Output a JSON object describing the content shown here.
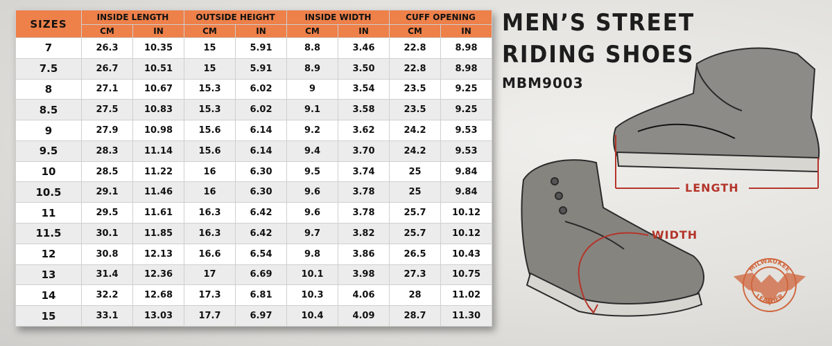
{
  "title_line1": "MEN’S STREET",
  "title_line2": "RIDING SHOES",
  "model": "MBM9003",
  "labels": {
    "length": "LENGTH",
    "width": "WIDTH"
  },
  "logo": {
    "top": "MILWAUKEE",
    "bottom": "LEATHER"
  },
  "colors": {
    "header": "#ee8049",
    "accent": "#b4342a",
    "row_alt": "#ececec"
  },
  "table": {
    "sizes_header": "SIZES",
    "groups": [
      "INSIDE LENGTH",
      "OUTSIDE HEIGHT",
      "INSIDE WIDTH",
      "CUFF OPENING"
    ],
    "units": [
      "CM",
      "IN",
      "CM",
      "IN",
      "CM",
      "IN",
      "CM",
      "IN"
    ],
    "rows": [
      [
        "7",
        "26.3",
        "10.35",
        "15",
        "5.91",
        "8.8",
        "3.46",
        "22.8",
        "8.98"
      ],
      [
        "7.5",
        "26.7",
        "10.51",
        "15",
        "5.91",
        "8.9",
        "3.50",
        "22.8",
        "8.98"
      ],
      [
        "8",
        "27.1",
        "10.67",
        "15.3",
        "6.02",
        "9",
        "3.54",
        "23.5",
        "9.25"
      ],
      [
        "8.5",
        "27.5",
        "10.83",
        "15.3",
        "6.02",
        "9.1",
        "3.58",
        "23.5",
        "9.25"
      ],
      [
        "9",
        "27.9",
        "10.98",
        "15.6",
        "6.14",
        "9.2",
        "3.62",
        "24.2",
        "9.53"
      ],
      [
        "9.5",
        "28.3",
        "11.14",
        "15.6",
        "6.14",
        "9.4",
        "3.70",
        "24.2",
        "9.53"
      ],
      [
        "10",
        "28.5",
        "11.22",
        "16",
        "6.30",
        "9.5",
        "3.74",
        "25",
        "9.84"
      ],
      [
        "10.5",
        "29.1",
        "11.46",
        "16",
        "6.30",
        "9.6",
        "3.78",
        "25",
        "9.84"
      ],
      [
        "11",
        "29.5",
        "11.61",
        "16.3",
        "6.42",
        "9.6",
        "3.78",
        "25.7",
        "10.12"
      ],
      [
        "11.5",
        "30.1",
        "11.85",
        "16.3",
        "6.42",
        "9.7",
        "3.82",
        "25.7",
        "10.12"
      ],
      [
        "12",
        "30.8",
        "12.13",
        "16.6",
        "6.54",
        "9.8",
        "3.86",
        "26.5",
        "10.43"
      ],
      [
        "13",
        "31.4",
        "12.36",
        "17",
        "6.69",
        "10.1",
        "3.98",
        "27.3",
        "10.75"
      ],
      [
        "14",
        "32.2",
        "12.68",
        "17.3",
        "6.81",
        "10.3",
        "4.06",
        "28",
        "11.02"
      ],
      [
        "15",
        "33.1",
        "13.03",
        "17.7",
        "6.97",
        "10.4",
        "4.09",
        "28.7",
        "11.30"
      ]
    ]
  }
}
